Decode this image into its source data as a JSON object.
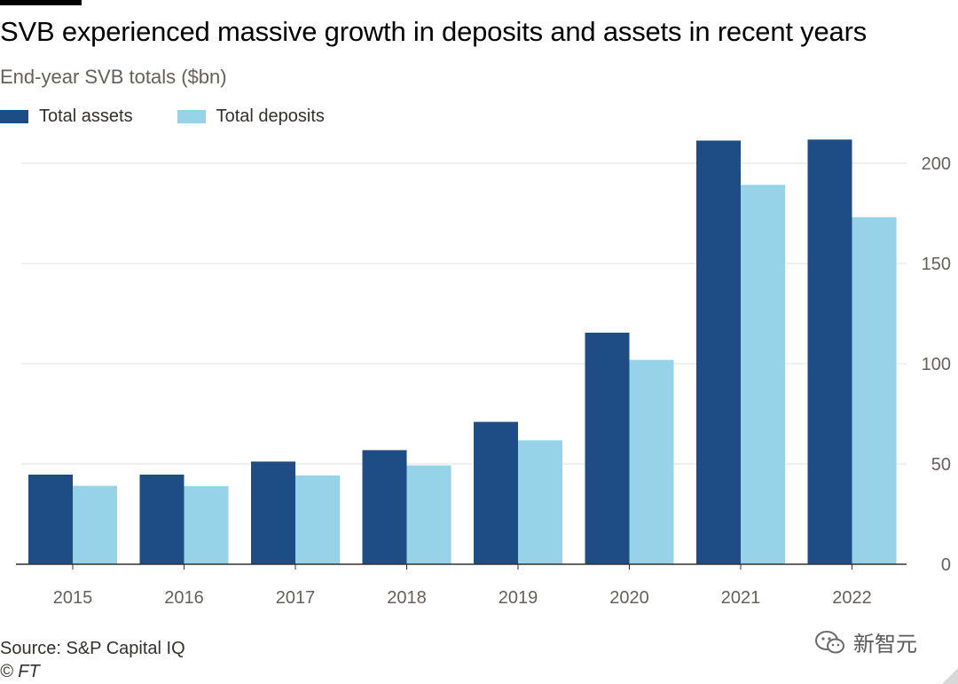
{
  "header": {
    "title": "SVB experienced massive growth in deposits and assets in recent years",
    "subtitle": "End-year SVB totals ($bn)"
  },
  "footer": {
    "source": "Source: S&P Capital IQ",
    "credit": "© FT"
  },
  "watermark": {
    "text": "新智元"
  },
  "colors": {
    "assets": "#1e4d85",
    "deposits": "#96d2e8",
    "grid": "#e6e2df",
    "axis": "#33302e",
    "tick_text": "#66605c"
  },
  "chart_data": {
    "type": "bar",
    "title": "SVB experienced massive growth in deposits and assets in recent years",
    "subtitle": "End-year SVB totals ($bn)",
    "xlabel": "",
    "ylabel": "",
    "categories": [
      "2015",
      "2016",
      "2017",
      "2018",
      "2019",
      "2020",
      "2021",
      "2022"
    ],
    "series": [
      {
        "name": "Total assets",
        "values": [
          44.7,
          44.7,
          51.2,
          56.9,
          71.0,
          115.5,
          211.3,
          211.8
        ]
      },
      {
        "name": "Total deposits",
        "values": [
          39.1,
          38.9,
          44.3,
          49.3,
          61.8,
          101.9,
          189.2,
          173.1
        ]
      }
    ],
    "ylim": [
      0,
      200
    ],
    "yticks": [
      0,
      50,
      100,
      150,
      200
    ],
    "ytick_labels": [
      "0",
      "50",
      "100",
      "150",
      "200"
    ],
    "y_axis_side": "right",
    "grid": true,
    "legend": "top-left"
  }
}
